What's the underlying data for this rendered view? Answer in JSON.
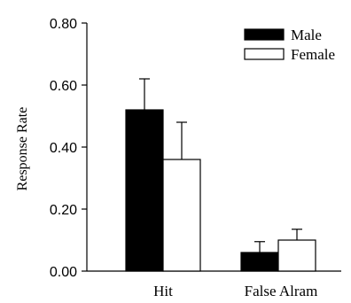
{
  "chart_data": {
    "type": "bar",
    "ylabel": "Response Rate",
    "xlabel": "",
    "ylim": [
      0,
      0.8
    ],
    "y_ticks": [
      "0.00",
      "0.20",
      "0.40",
      "0.60",
      "0.80"
    ],
    "categories": [
      "Hit",
      "False Alram"
    ],
    "series": [
      {
        "name": "Male",
        "fill": "#000000",
        "values": [
          0.52,
          0.06
        ],
        "errors": [
          0.1,
          0.035
        ]
      },
      {
        "name": "Female",
        "fill": "#ffffff",
        "values": [
          0.36,
          0.1
        ],
        "errors": [
          0.12,
          0.035
        ]
      }
    ],
    "legend_position": "top-right",
    "grid": false
  }
}
